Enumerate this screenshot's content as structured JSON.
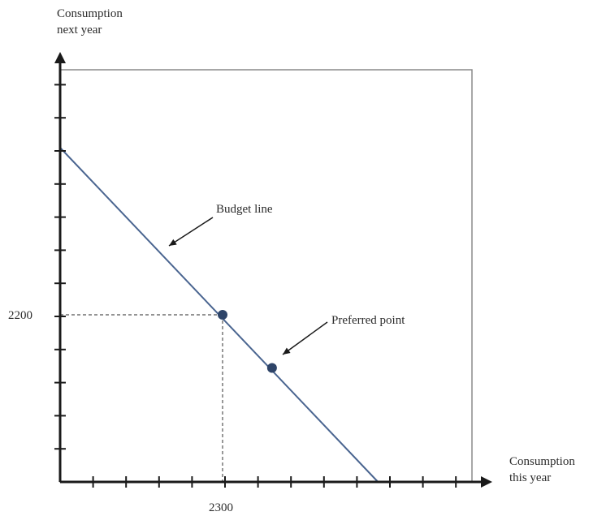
{
  "chart_data": {
    "type": "line",
    "title": "",
    "ylabel_lines": [
      "Consumption",
      "next year"
    ],
    "xlabel_lines": [
      "Consumption",
      "this year"
    ],
    "x_tick_labels": [
      "2300"
    ],
    "y_tick_labels": [
      "2200"
    ],
    "series": [
      {
        "name": "Budget line",
        "points": [
          [
            0,
            4400
          ],
          [
            4500,
            0
          ]
        ]
      }
    ],
    "marked_points": [
      {
        "x": 2300,
        "y": 2200
      },
      {
        "x": 3000,
        "y": 1500,
        "label": "Preferred point"
      }
    ],
    "annotations": [
      "Budget line",
      "Preferred point"
    ],
    "xlim": [
      0,
      5000
    ],
    "ylim": [
      0,
      5500
    ],
    "grid": false,
    "colors": {
      "line": "#4a6590",
      "point": "#2e4468",
      "axis": "#1a1a1a",
      "frame": "#8a8a8a",
      "guide": "#555555"
    }
  }
}
